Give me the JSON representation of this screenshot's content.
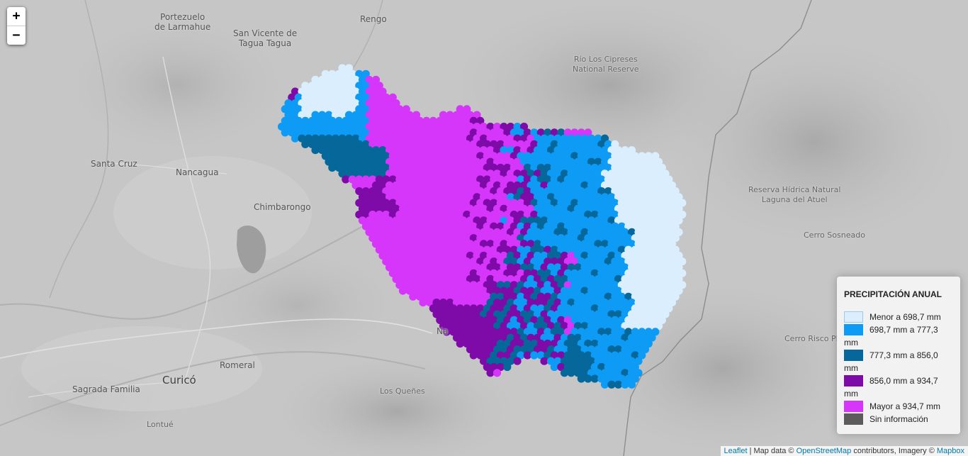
{
  "zoom": {
    "in_label": "+",
    "out_label": "−"
  },
  "places": [
    {
      "name": "Portezuelo\nde Larmahue",
      "id": "place-portezuelo"
    },
    {
      "name": "Rengo",
      "id": "place-rengo"
    },
    {
      "name": "San Vicente de\nTagua Tagua",
      "id": "place-san-vicente"
    },
    {
      "name": "Río Los Cipreses\nNational Reserve",
      "id": "place-cipreses"
    },
    {
      "name": "Santa Cruz",
      "id": "place-santa-cruz"
    },
    {
      "name": "Nancagua",
      "id": "place-nancagua"
    },
    {
      "name": "Chimbarongo",
      "id": "place-chimbarongo"
    },
    {
      "name": "Reserva Hídrica Natural\nLaguna del Atuel",
      "id": "place-atuel"
    },
    {
      "name": "Cerro Sosneado",
      "id": "place-sosneado"
    },
    {
      "name": "Cerro Risco Pla",
      "id": "place-risco"
    },
    {
      "name": "Na",
      "id": "place-na"
    },
    {
      "name": "Romeral",
      "id": "place-romeral"
    },
    {
      "name": "Curicó",
      "id": "place-curico"
    },
    {
      "name": "Sagrada Familia",
      "id": "place-sagrada"
    },
    {
      "name": "Los Queñes",
      "id": "place-quenes"
    },
    {
      "name": "Lontué",
      "id": "place-lontue"
    }
  ],
  "legend": {
    "title": "PRECIPITACIÓN ANUAL",
    "items": [
      {
        "label": "Menor a 698,7 mm",
        "color": "#dbeefd"
      },
      {
        "label": "698,7 mm a 777,3 mm",
        "color": "#0d9bf5"
      },
      {
        "label": "777,3 mm a 856,0 mm",
        "color": "#05679a"
      },
      {
        "label": "856,0 mm a 934,7 mm",
        "color": "#7e0ba8"
      },
      {
        "label": "Mayor a 934,7 mm",
        "color": "#d636fa"
      },
      {
        "label": "Sin información",
        "color": "#5b5b5b"
      }
    ]
  },
  "attribution": {
    "leaflet": "Leaflet",
    "sep1": " | Map data © ",
    "osm": "OpenStreetMap",
    "sep2": " contributors, Imagery © ",
    "mapbox": "Mapbox"
  }
}
